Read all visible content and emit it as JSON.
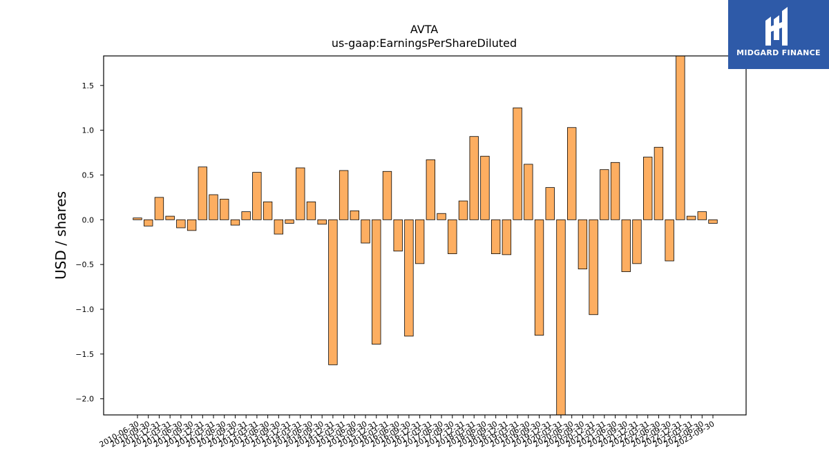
{
  "brand": {
    "name": "MIDGARD FINANCE",
    "color": "#2e5aa8"
  },
  "chart_data": {
    "type": "bar",
    "title": "AVTA",
    "subtitle": "us-gaap:EarningsPerShareDiluted",
    "ylabel": "USD / shares",
    "xlabel": "",
    "ylim": [
      -2.18,
      1.83
    ],
    "yticks": [
      -2.0,
      -1.5,
      -1.0,
      -0.5,
      0.0,
      0.5,
      1.0,
      1.5
    ],
    "ytick_labels": [
      "−2.0",
      "−1.5",
      "−1.0",
      "−0.5",
      "0.0",
      "0.5",
      "1.0",
      "1.5"
    ],
    "bar_color": "#fdae61",
    "edge_color": "#000000",
    "categories": [
      "2010-06-30",
      "2010-09-30",
      "2010-12-31",
      "2011-03-31",
      "2011-06-30",
      "2011-09-30",
      "2011-12-31",
      "2012-03-31",
      "2012-06-30",
      "2012-09-30",
      "2012-12-31",
      "2013-03-31",
      "2013-06-30",
      "2013-09-30",
      "2013-12-31",
      "2014-03-31",
      "2014-06-30",
      "2014-09-30",
      "2014-12-31",
      "2015-03-31",
      "2015-06-30",
      "2015-09-30",
      "2015-12-31",
      "2016-03-31",
      "2016-06-30",
      "2016-09-30",
      "2016-12-31",
      "2017-03-31",
      "2017-06-30",
      "2017-09-30",
      "2017-12-31",
      "2018-03-31",
      "2018-06-30",
      "2018-09-30",
      "2018-12-31",
      "2019-03-31",
      "2019-06-30",
      "2019-09-30",
      "2019-12-31",
      "2020-03-31",
      "2020-06-30",
      "2020-09-30",
      "2020-12-31",
      "2021-03-31",
      "2021-06-30",
      "2021-09-30",
      "2021-12-31",
      "2022-03-31",
      "2022-06-30",
      "2022-09-30",
      "2022-12-31",
      "2023-03-31",
      "2023-06-30",
      "2023-09-30"
    ],
    "values": [
      0.02,
      -0.07,
      0.25,
      0.04,
      -0.09,
      -0.12,
      0.59,
      0.28,
      0.23,
      -0.06,
      0.09,
      0.53,
      0.2,
      -0.16,
      -0.04,
      0.58,
      0.2,
      -0.05,
      -1.62,
      0.55,
      0.1,
      -0.26,
      -1.39,
      0.54,
      -0.35,
      -1.3,
      -0.49,
      0.67,
      0.07,
      -0.38,
      0.21,
      0.93,
      0.71,
      -0.38,
      -0.39,
      1.25,
      0.62,
      -1.29,
      0.36,
      -2.18,
      1.03,
      -0.55,
      -1.06,
      0.56,
      0.64,
      -0.58,
      -0.49,
      0.7,
      0.81,
      -0.46,
      1.83,
      0.04,
      0.09,
      -0.04
    ]
  }
}
